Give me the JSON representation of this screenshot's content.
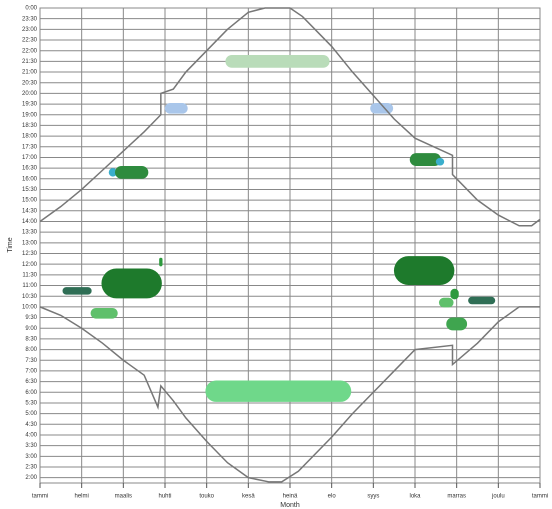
{
  "chart_data": {
    "type": "daylight",
    "x_label": "Month",
    "y_label": "Time",
    "xlim": [
      0,
      12
    ],
    "ylim": [
      1.75,
      24
    ],
    "xticks": [
      {
        "value": 0,
        "label": "tammi"
      },
      {
        "value": 1,
        "label": "helmi"
      },
      {
        "value": 2,
        "label": "maalis"
      },
      {
        "value": 3,
        "label": "huhti"
      },
      {
        "value": 4,
        "label": "touko"
      },
      {
        "value": 5,
        "label": "kesä"
      },
      {
        "value": 6,
        "label": "heinä"
      },
      {
        "value": 7,
        "label": "elo"
      },
      {
        "value": 8,
        "label": "syys"
      },
      {
        "value": 9,
        "label": "loka"
      },
      {
        "value": 10,
        "label": "marras"
      },
      {
        "value": 11,
        "label": "joulu"
      },
      {
        "value": 12,
        "label": "tammi"
      }
    ],
    "yticks": [
      {
        "value": 2,
        "label": "2:00"
      },
      {
        "value": 2.5,
        "label": "2:30"
      },
      {
        "value": 3,
        "label": "3:00"
      },
      {
        "value": 3.5,
        "label": "3:30"
      },
      {
        "value": 4,
        "label": "4:00"
      },
      {
        "value": 4.5,
        "label": "4:30"
      },
      {
        "value": 5,
        "label": "5:00"
      },
      {
        "value": 5.5,
        "label": "5:30"
      },
      {
        "value": 6,
        "label": "6:00"
      },
      {
        "value": 6.5,
        "label": "6:30"
      },
      {
        "value": 7,
        "label": "7:00"
      },
      {
        "value": 7.5,
        "label": "7:30"
      },
      {
        "value": 8,
        "label": "8:00"
      },
      {
        "value": 8.5,
        "label": "8:30"
      },
      {
        "value": 9,
        "label": "9:00"
      },
      {
        "value": 9.5,
        "label": "9:30"
      },
      {
        "value": 10,
        "label": "10:00"
      },
      {
        "value": 10.5,
        "label": "10:30"
      },
      {
        "value": 11,
        "label": "11:00"
      },
      {
        "value": 11.5,
        "label": "11:30"
      },
      {
        "value": 12,
        "label": "12:00"
      },
      {
        "value": 12.5,
        "label": "12:30"
      },
      {
        "value": 13,
        "label": "13:00"
      },
      {
        "value": 13.5,
        "label": "13:30"
      },
      {
        "value": 14,
        "label": "14:00"
      },
      {
        "value": 14.5,
        "label": "14:30"
      },
      {
        "value": 15,
        "label": "15:00"
      },
      {
        "value": 15.5,
        "label": "15:30"
      },
      {
        "value": 16,
        "label": "16:00"
      },
      {
        "value": 16.5,
        "label": "16:30"
      },
      {
        "value": 17,
        "label": "17:00"
      },
      {
        "value": 17.5,
        "label": "17:30"
      },
      {
        "value": 18,
        "label": "18:00"
      },
      {
        "value": 18.5,
        "label": "18:30"
      },
      {
        "value": 19,
        "label": "19:00"
      },
      {
        "value": 19.5,
        "label": "19:30"
      },
      {
        "value": 20,
        "label": "20:00"
      },
      {
        "value": 20.5,
        "label": "20:30"
      },
      {
        "value": 21,
        "label": "21:00"
      },
      {
        "value": 21.5,
        "label": "21:30"
      },
      {
        "value": 22,
        "label": "22:00"
      },
      {
        "value": 22.5,
        "label": "22:30"
      },
      {
        "value": 23,
        "label": "23:00"
      },
      {
        "value": 23.5,
        "label": "23:30"
      },
      {
        "value": 24,
        "label": "0:00"
      }
    ],
    "grid": true,
    "lines": [
      {
        "color": "#777777",
        "x": [
          0,
          0.5,
          1,
          1.5,
          2,
          2.5,
          2.9,
          2.9,
          3.2,
          3.5,
          4,
          4.5,
          5,
          5.4,
          6.0,
          6.3,
          7,
          7.5,
          8,
          8.5,
          9,
          9.9,
          9.9,
          10.5,
          11,
          11.5,
          11.8,
          12
        ],
        "y": [
          14.0,
          14.7,
          15.5,
          16.4,
          17.3,
          18.2,
          19.0,
          20.0,
          20.2,
          21.0,
          22.0,
          23.0,
          23.8,
          24,
          24,
          23.6,
          22.2,
          21.0,
          19.9,
          18.8,
          17.9,
          17.1,
          16.2,
          15.0,
          14.3,
          13.8,
          13.8,
          14.1
        ]
      },
      {
        "color": "#777777",
        "x": [
          0,
          0.5,
          1,
          1.5,
          2,
          2.5,
          2.83,
          2.9,
          3.2,
          3.5,
          4,
          4.5,
          5,
          5.5,
          5.8,
          6.2,
          7,
          7.5,
          8,
          8.5,
          9,
          9.9,
          9.9,
          10.5,
          11,
          11.5,
          12
        ],
        "y": [
          10.0,
          9.6,
          9.0,
          8.3,
          7.5,
          6.8,
          5.3,
          6.3,
          5.6,
          4.8,
          3.7,
          2.7,
          2.0,
          1.8,
          1.8,
          2.3,
          3.9,
          5.0,
          6.0,
          7.0,
          8.0,
          8.2,
          7.3,
          8.3,
          9.3,
          10.0,
          10.0
        ]
      }
    ],
    "events": [
      {
        "x": 5.7,
        "y": 21.5,
        "w": 2.5,
        "h": 0.6,
        "color": "#b9dcb9"
      },
      {
        "x": 3.27,
        "y": 19.3,
        "w": 0.55,
        "h": 0.5,
        "color": "#a9c6ea"
      },
      {
        "x": 8.2,
        "y": 19.3,
        "w": 0.55,
        "h": 0.5,
        "color": "#a9c6ea"
      },
      {
        "x": 1.75,
        "y": 16.3,
        "w": 0.2,
        "h": 0.4,
        "color": "#3aaecc"
      },
      {
        "x": 2.2,
        "y": 16.3,
        "w": 0.8,
        "h": 0.6,
        "color": "#2e8b3e"
      },
      {
        "x": 9.25,
        "y": 16.9,
        "w": 0.75,
        "h": 0.6,
        "color": "#2e8b3e"
      },
      {
        "x": 9.6,
        "y": 16.8,
        "w": 0.2,
        "h": 0.35,
        "color": "#3aaecc"
      },
      {
        "x": 2.2,
        "y": 11.1,
        "w": 1.45,
        "h": 1.4,
        "color": "#1e7a2c"
      },
      {
        "x": 2.9,
        "y": 12.1,
        "w": 0.08,
        "h": 0.4,
        "color": "#2e9a3e"
      },
      {
        "x": 0.89,
        "y": 10.75,
        "w": 0.7,
        "h": 0.35,
        "color": "#2f6e55"
      },
      {
        "x": 1.54,
        "y": 9.7,
        "w": 0.65,
        "h": 0.5,
        "color": "#5fc06b"
      },
      {
        "x": 9.22,
        "y": 11.7,
        "w": 1.45,
        "h": 1.35,
        "color": "#1e7a2c"
      },
      {
        "x": 9.95,
        "y": 10.6,
        "w": 0.2,
        "h": 0.5,
        "color": "#2e9a3e"
      },
      {
        "x": 9.75,
        "y": 10.2,
        "w": 0.35,
        "h": 0.45,
        "color": "#5fc06b"
      },
      {
        "x": 10.6,
        "y": 10.3,
        "w": 0.65,
        "h": 0.35,
        "color": "#2f6e55"
      },
      {
        "x": 10.0,
        "y": 9.2,
        "w": 0.5,
        "h": 0.6,
        "color": "#3fa54f"
      },
      {
        "x": 5.72,
        "y": 6.05,
        "w": 3.5,
        "h": 1.0,
        "color": "#6fd88a"
      }
    ]
  }
}
